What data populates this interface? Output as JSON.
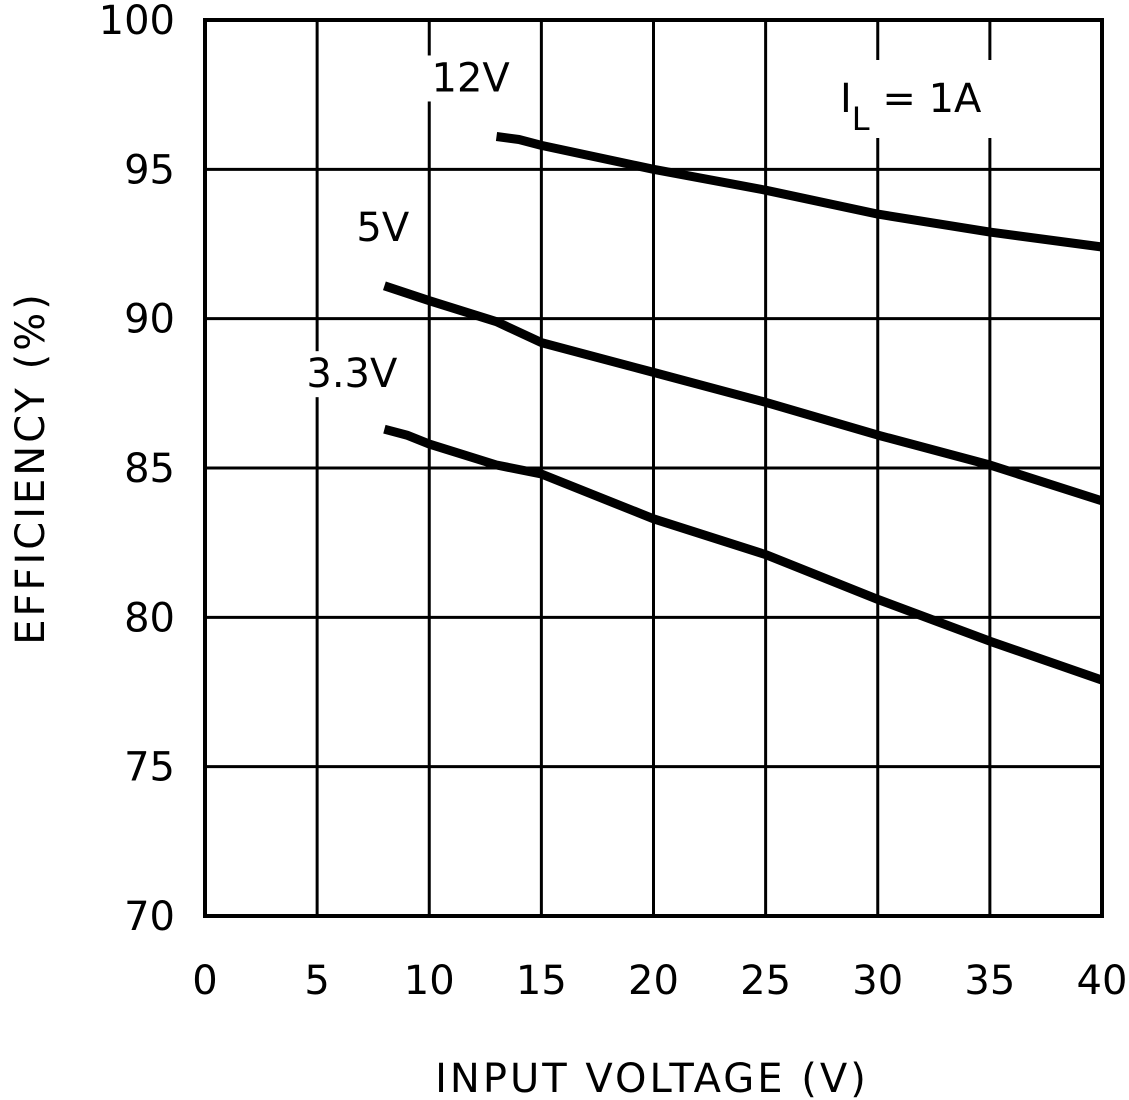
{
  "chart_data": {
    "type": "line",
    "title": "",
    "xlabel": "INPUT VOLTAGE (V)",
    "ylabel": "EFFICIENCY (%)",
    "xlim": [
      0,
      40
    ],
    "ylim": [
      70,
      100
    ],
    "x_ticks": [
      "0",
      "5",
      "10",
      "15",
      "20",
      "25",
      "30",
      "35",
      "40"
    ],
    "y_ticks": [
      "70",
      "75",
      "80",
      "85",
      "90",
      "95",
      "100"
    ],
    "grid": true,
    "annotation": {
      "symbol": "I",
      "subscript": "L",
      "value": " = 1A"
    },
    "series": [
      {
        "name": "12V",
        "x": [
          13,
          14,
          15,
          20,
          25,
          30,
          35,
          40
        ],
        "y": [
          96.1,
          96.0,
          95.8,
          95.0,
          94.3,
          93.5,
          92.9,
          92.4
        ]
      },
      {
        "name": "5V",
        "x": [
          8,
          10,
          13,
          15,
          20,
          25,
          30,
          35,
          40
        ],
        "y": [
          91.1,
          90.6,
          89.9,
          89.2,
          88.2,
          87.2,
          86.1,
          85.1,
          83.9
        ]
      },
      {
        "name": "3.3V",
        "x": [
          8,
          9,
          10,
          13,
          15,
          20,
          25,
          30,
          35,
          40
        ],
        "y": [
          86.3,
          86.1,
          85.8,
          85.1,
          84.8,
          83.3,
          82.1,
          80.6,
          79.2,
          77.9
        ]
      }
    ]
  }
}
